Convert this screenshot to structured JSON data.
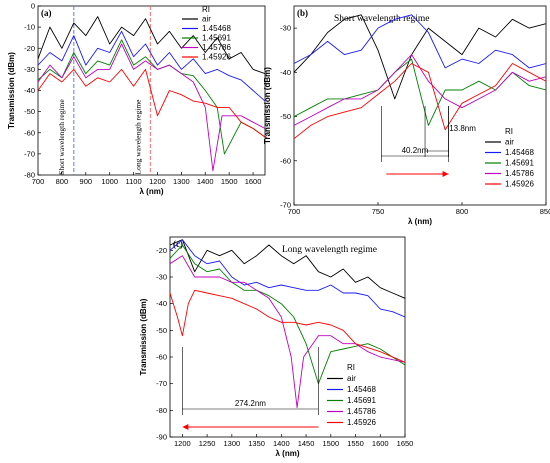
{
  "chart_data": [
    {
      "panel": "(a)",
      "type": "line",
      "xlabel": "λ (nm)",
      "ylabel": "Transmission (dBm)",
      "xlim": [
        700,
        1650
      ],
      "ylim": [
        -80,
        0
      ],
      "xticks": [
        700,
        800,
        900,
        1000,
        1100,
        1200,
        1300,
        1400,
        1500,
        1600
      ],
      "yticks": [
        0,
        -10,
        -20,
        -30,
        -40,
        -50,
        -60,
        -70,
        -80
      ],
      "legend_title": "RI",
      "legend_position": "top-right",
      "grid": false,
      "vlines": [
        {
          "x": 850,
          "color": "#4b6cff",
          "style": "dash",
          "label": "Short wavelength regime"
        },
        {
          "x": 1170,
          "color": "#ff5c5c",
          "style": "dash",
          "label": "Long wavelength regime"
        }
      ],
      "series": [
        {
          "name": "air",
          "color": "#000000",
          "x": [
            700,
            750,
            800,
            850,
            900,
            950,
            1000,
            1050,
            1100,
            1150,
            1200,
            1250,
            1300,
            1350,
            1400,
            1450,
            1500,
            1550,
            1600,
            1650
          ],
          "y": [
            -25,
            -10,
            -20,
            -8,
            -14,
            -5,
            -18,
            -10,
            -14,
            -6,
            -18,
            -12,
            -20,
            -14,
            -22,
            -15,
            -25,
            -22,
            -30,
            -32
          ]
        },
        {
          "name": "1.45468",
          "color": "#1a1aff",
          "x": [
            700,
            750,
            800,
            850,
            900,
            950,
            1000,
            1050,
            1100,
            1150,
            1200,
            1250,
            1300,
            1350,
            1400,
            1450,
            1500,
            1550,
            1600,
            1650
          ],
          "y": [
            -28,
            -22,
            -26,
            -14,
            -28,
            -20,
            -22,
            -12,
            -24,
            -18,
            -28,
            -22,
            -30,
            -25,
            -32,
            -30,
            -33,
            -35,
            -40,
            -45
          ]
        },
        {
          "name": "1.45691",
          "color": "#008000",
          "x": [
            700,
            750,
            800,
            850,
            900,
            950,
            1000,
            1050,
            1100,
            1150,
            1200,
            1250,
            1300,
            1350,
            1400,
            1450,
            1480,
            1550,
            1600,
            1650
          ],
          "y": [
            -35,
            -30,
            -34,
            -22,
            -32,
            -26,
            -28,
            -16,
            -28,
            -24,
            -30,
            -28,
            -32,
            -33,
            -40,
            -48,
            -70,
            -55,
            -58,
            -62
          ]
        },
        {
          "name": "1.45786",
          "color": "#c000c0",
          "x": [
            700,
            750,
            800,
            850,
            900,
            950,
            1000,
            1050,
            1100,
            1150,
            1200,
            1250,
            1300,
            1350,
            1400,
            1432,
            1470,
            1550,
            1600,
            1650
          ],
          "y": [
            -36,
            -28,
            -34,
            -24,
            -34,
            -30,
            -30,
            -18,
            -30,
            -26,
            -30,
            -28,
            -32,
            -36,
            -48,
            -78,
            -52,
            -52,
            -55,
            -58
          ]
        },
        {
          "name": "1.45926",
          "color": "#ff0000",
          "x": [
            700,
            750,
            800,
            850,
            900,
            950,
            1000,
            1050,
            1100,
            1150,
            1200,
            1250,
            1300,
            1350,
            1400,
            1450,
            1500,
            1550,
            1600,
            1650
          ],
          "y": [
            -40,
            -32,
            -36,
            -30,
            -38,
            -34,
            -36,
            -30,
            -38,
            -30,
            -52,
            -40,
            -42,
            -45,
            -46,
            -48,
            -48,
            -55,
            -58,
            -62
          ]
        }
      ]
    },
    {
      "panel": "(b)",
      "type": "line",
      "title": "Short wavelength regime",
      "xlabel": "λ (nm)",
      "ylabel": "Transmission (dBm)",
      "xlim": [
        700,
        850
      ],
      "ylim": [
        -70,
        -25
      ],
      "xticks": [
        700,
        750,
        800,
        850
      ],
      "yticks": [
        -30,
        -40,
        -50,
        -60,
        -70
      ],
      "legend_title": "RI",
      "legend_position": "right",
      "grid": false,
      "annotations": [
        {
          "text": "40.2nm",
          "x1": 752,
          "x2": 792
        },
        {
          "text": "13.8nm",
          "x1": 778,
          "x2": 792
        }
      ],
      "series": [
        {
          "name": "air",
          "color": "#000000",
          "x": [
            700,
            710,
            720,
            730,
            740,
            750,
            760,
            770,
            780,
            790,
            800,
            810,
            820,
            830,
            840,
            850
          ],
          "y": [
            -40,
            -36,
            -31,
            -28,
            -27,
            -35,
            -46,
            -36,
            -30,
            -33,
            -36,
            -30,
            -32,
            -28,
            -30,
            -29
          ]
        },
        {
          "name": "1.45468",
          "color": "#1a1aff",
          "x": [
            700,
            710,
            720,
            730,
            740,
            750,
            760,
            770,
            780,
            790,
            800,
            810,
            820,
            830,
            840,
            850
          ],
          "y": [
            -38,
            -36,
            -33,
            -36,
            -35,
            -30,
            -28,
            -27,
            -31,
            -39,
            -37,
            -38,
            -35,
            -36,
            -39,
            -38
          ]
        },
        {
          "name": "1.45691",
          "color": "#008000",
          "x": [
            700,
            710,
            720,
            730,
            740,
            750,
            760,
            770,
            780,
            790,
            800,
            810,
            820,
            830,
            840,
            850
          ],
          "y": [
            -50,
            -48,
            -46,
            -46,
            -45,
            -44,
            -40,
            -37,
            -52,
            -44,
            -44,
            -42,
            -44,
            -40,
            -43,
            -44
          ]
        },
        {
          "name": "1.45786",
          "color": "#c000c0",
          "x": [
            700,
            710,
            720,
            730,
            740,
            750,
            760,
            770,
            780,
            790,
            800,
            810,
            820,
            830,
            840,
            850
          ],
          "y": [
            -52,
            -50,
            -48,
            -46,
            -46,
            -44,
            -40,
            -36,
            -42,
            -46,
            -48,
            -46,
            -44,
            -40,
            -42,
            -41
          ]
        },
        {
          "name": "1.45926",
          "color": "#ff0000",
          "x": [
            700,
            710,
            720,
            730,
            740,
            750,
            760,
            770,
            780,
            790,
            800,
            810,
            820,
            830,
            840,
            850
          ],
          "y": [
            -55,
            -52,
            -50,
            -49,
            -48,
            -45,
            -42,
            -38,
            -40,
            -53,
            -47,
            -45,
            -43,
            -38,
            -40,
            -42
          ]
        }
      ]
    },
    {
      "panel": "(c)",
      "type": "line",
      "title": "Long wavelength regime",
      "xlabel": "λ (nm)",
      "ylabel": "Transmission (dBm)",
      "xlim": [
        1175,
        1650
      ],
      "ylim": [
        -90,
        -15
      ],
      "xticks": [
        1200,
        1250,
        1300,
        1350,
        1400,
        1450,
        1500,
        1550,
        1600,
        1650
      ],
      "yticks": [
        -20,
        -30,
        -40,
        -50,
        -60,
        -70,
        -80,
        -90
      ],
      "legend_title": "RI",
      "legend_position": "bottom-right",
      "grid": false,
      "annotations": [
        {
          "text": "274.2nm",
          "x1": 1200,
          "x2": 1475
        }
      ],
      "series": [
        {
          "name": "air",
          "color": "#000000",
          "x": [
            1175,
            1200,
            1225,
            1250,
            1275,
            1300,
            1325,
            1350,
            1375,
            1400,
            1425,
            1450,
            1475,
            1500,
            1525,
            1550,
            1575,
            1600,
            1625,
            1650
          ],
          "y": [
            -18,
            -16,
            -28,
            -20,
            -22,
            -20,
            -25,
            -22,
            -18,
            -22,
            -25,
            -22,
            -28,
            -30,
            -27,
            -32,
            -30,
            -34,
            -36,
            -38
          ]
        },
        {
          "name": "1.45468",
          "color": "#1a1aff",
          "x": [
            1175,
            1200,
            1225,
            1250,
            1275,
            1300,
            1325,
            1350,
            1375,
            1400,
            1425,
            1450,
            1475,
            1500,
            1525,
            1550,
            1575,
            1600,
            1625,
            1650
          ],
          "y": [
            -20,
            -16,
            -22,
            -25,
            -24,
            -30,
            -33,
            -32,
            -34,
            -33,
            -34,
            -35,
            -35,
            -33,
            -36,
            -36,
            -37,
            -42,
            -43,
            -45
          ]
        },
        {
          "name": "1.45691",
          "color": "#008000",
          "x": [
            1175,
            1200,
            1225,
            1250,
            1275,
            1300,
            1325,
            1350,
            1375,
            1400,
            1425,
            1450,
            1475,
            1500,
            1525,
            1550,
            1575,
            1600,
            1625,
            1650
          ],
          "y": [
            -23,
            -18,
            -25,
            -28,
            -27,
            -32,
            -35,
            -35,
            -37,
            -40,
            -45,
            -55,
            -70,
            -58,
            -57,
            -56,
            -55,
            -57,
            -60,
            -63
          ]
        },
        {
          "name": "1.45786",
          "color": "#c000c0",
          "x": [
            1175,
            1200,
            1225,
            1250,
            1275,
            1300,
            1325,
            1350,
            1375,
            1400,
            1420,
            1432,
            1445,
            1475,
            1500,
            1525,
            1550,
            1575,
            1600,
            1650
          ],
          "y": [
            -25,
            -22,
            -30,
            -30,
            -30,
            -32,
            -32,
            -35,
            -38,
            -45,
            -60,
            -79,
            -60,
            -52,
            -52,
            -55,
            -55,
            -58,
            -60,
            -62
          ]
        },
        {
          "name": "1.45926",
          "color": "#ff0000",
          "x": [
            1175,
            1190,
            1200,
            1212,
            1225,
            1250,
            1275,
            1300,
            1325,
            1350,
            1375,
            1400,
            1425,
            1450,
            1475,
            1500,
            1525,
            1550,
            1600,
            1650
          ],
          "y": [
            -36,
            -45,
            -52,
            -40,
            -35,
            -36,
            -37,
            -38,
            -40,
            -42,
            -45,
            -47,
            -47,
            -48,
            -47,
            -48,
            -50,
            -55,
            -58,
            -62
          ]
        }
      ]
    }
  ]
}
